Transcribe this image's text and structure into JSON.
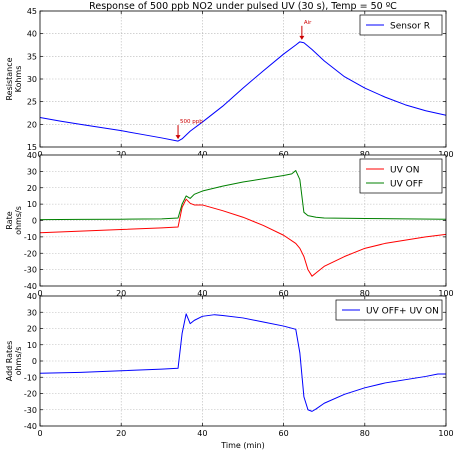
{
  "chart_data": [
    {
      "type": "line",
      "title": "Response of 500 ppb NO2 under pulsed UV (30 s), Temp = 50 ºC",
      "xlabel": "",
      "ylabel": [
        "Resistance",
        "Kohms"
      ],
      "xlim": [
        0,
        100
      ],
      "ylim": [
        15,
        45
      ],
      "xticks": [
        0,
        20,
        40,
        60,
        80,
        100
      ],
      "yticks": [
        15,
        20,
        25,
        30,
        35,
        40,
        45
      ],
      "grid": true,
      "legend_position": "top-right",
      "series": [
        {
          "name": "Sensor R",
          "color": "#0000ff",
          "x": [
            0,
            5,
            10,
            15,
            20,
            25,
            30,
            34,
            35,
            37,
            40,
            45,
            50,
            55,
            60,
            63,
            64,
            65,
            67,
            70,
            75,
            80,
            85,
            90,
            95,
            100
          ],
          "y": [
            21.5,
            20.7,
            20.0,
            19.3,
            18.6,
            17.8,
            17.0,
            16.3,
            16.8,
            18.5,
            20.5,
            24.0,
            28.0,
            31.8,
            35.5,
            37.5,
            38.2,
            38.0,
            36.5,
            34.0,
            30.5,
            28.0,
            26.0,
            24.3,
            23.0,
            22.0
          ]
        }
      ],
      "annotations": [
        {
          "text": "500 ppb",
          "x": 34,
          "y": 16.3,
          "color": "#cc0000"
        },
        {
          "text": "Air",
          "x": 64.5,
          "y": 38.2,
          "color": "#cc0000"
        }
      ]
    },
    {
      "type": "line",
      "xlabel": "",
      "ylabel": [
        "Rate",
        "ohms/s"
      ],
      "xlim": [
        0,
        100
      ],
      "ylim": [
        -40,
        40
      ],
      "xticks": [
        0,
        20,
        40,
        60,
        80,
        100
      ],
      "yticks": [
        -40,
        -30,
        -20,
        -10,
        0,
        10,
        20,
        30,
        40
      ],
      "grid": true,
      "legend_position": "top-right",
      "series": [
        {
          "name": "UV ON",
          "color": "#ff0000",
          "x": [
            0,
            10,
            20,
            30,
            34,
            35,
            36,
            37,
            38,
            40,
            45,
            50,
            55,
            60,
            63,
            64,
            65,
            66,
            67,
            68,
            70,
            75,
            80,
            85,
            90,
            95,
            100
          ],
          "y": [
            -7.5,
            -6.5,
            -5.5,
            -4.5,
            -4.0,
            8.0,
            13.0,
            10.5,
            9.5,
            9.5,
            6.0,
            2.0,
            -3.0,
            -9.0,
            -14.0,
            -17.0,
            -22.0,
            -30.0,
            -34.0,
            -32.0,
            -28.0,
            -22.0,
            -17.0,
            -14.0,
            -12.0,
            -10.0,
            -8.5
          ]
        },
        {
          "name": "UV OFF",
          "color": "#008000",
          "x": [
            0,
            10,
            20,
            30,
            34,
            35,
            36,
            37,
            38,
            40,
            45,
            50,
            55,
            60,
            62,
            63,
            64,
            65,
            66,
            68,
            70,
            80,
            90,
            100
          ],
          "y": [
            0.5,
            0.7,
            0.8,
            1.0,
            1.5,
            10.0,
            15.0,
            13.5,
            16.0,
            18.0,
            21.0,
            23.5,
            25.5,
            27.5,
            28.5,
            30.5,
            25.0,
            5.0,
            3.0,
            2.0,
            1.5,
            1.2,
            1.0,
            0.8
          ]
        }
      ]
    },
    {
      "type": "line",
      "xlabel": "Time (min)",
      "ylabel": [
        "Add Rates",
        "ohms/s"
      ],
      "xlim": [
        0,
        100
      ],
      "ylim": [
        -40,
        40
      ],
      "xticks": [
        0,
        20,
        40,
        60,
        80,
        100
      ],
      "yticks": [
        -40,
        -30,
        -20,
        -10,
        0,
        10,
        20,
        30,
        40
      ],
      "grid": true,
      "legend_position": "top-right",
      "series": [
        {
          "name": "UV OFF+ UV ON",
          "color": "#0000ff",
          "x": [
            0,
            10,
            20,
            30,
            34,
            35,
            36,
            37,
            38,
            40,
            43,
            45,
            50,
            55,
            60,
            63,
            64,
            65,
            66,
            67,
            68,
            70,
            75,
            80,
            85,
            90,
            95,
            98,
            100
          ],
          "y": [
            -7.5,
            -7.0,
            -6.0,
            -5.0,
            -4.5,
            17.0,
            29.0,
            23.0,
            25.0,
            27.5,
            28.5,
            28.0,
            26.5,
            24.0,
            21.5,
            19.5,
            5.0,
            -22.0,
            -30.0,
            -31.0,
            -29.5,
            -26.0,
            -20.5,
            -16.5,
            -13.5,
            -11.5,
            -9.5,
            -8.0,
            -8.0
          ]
        }
      ]
    }
  ]
}
